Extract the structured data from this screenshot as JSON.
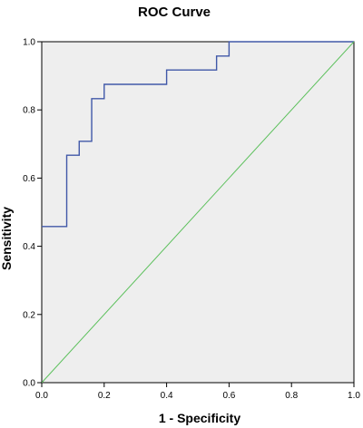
{
  "chart_data": {
    "type": "line",
    "title": "ROC Curve",
    "xlabel": "1 - Specificity",
    "ylabel": "Sensitivity",
    "xlim": [
      0.0,
      1.0
    ],
    "ylim": [
      0.0,
      1.0
    ],
    "x_ticks": [
      "0.0",
      "0.2",
      "0.4",
      "0.6",
      "0.8",
      "1.0"
    ],
    "y_ticks": [
      "0.0",
      "0.2",
      "0.4",
      "0.6",
      "0.8",
      "1.0"
    ],
    "grid": false,
    "legend": "none",
    "plot_background": "#eeeeee",
    "series": [
      {
        "color": "#4058a8",
        "step": true,
        "x": [
          0.0,
          0.08,
          0.08,
          0.12,
          0.12,
          0.16,
          0.16,
          0.2,
          0.2,
          0.4,
          0.4,
          0.56,
          0.56,
          0.6,
          0.6,
          1.0
        ],
        "y": [
          0.458,
          0.458,
          0.667,
          0.667,
          0.708,
          0.708,
          0.833,
          0.833,
          0.875,
          0.875,
          0.917,
          0.917,
          0.958,
          0.958,
          1.0,
          1.0
        ]
      },
      {
        "color": "#5cc05c",
        "step": false,
        "x": [
          0.0,
          1.0
        ],
        "y": [
          0.0,
          1.0
        ]
      }
    ]
  }
}
